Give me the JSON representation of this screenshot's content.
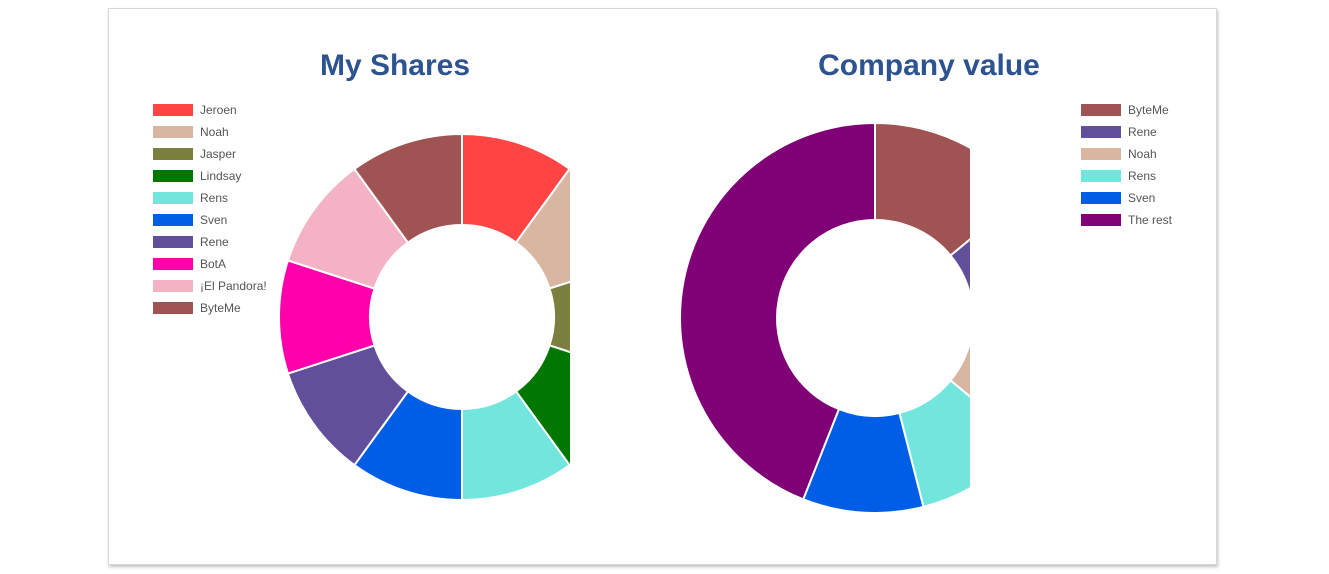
{
  "chart_data": [
    {
      "type": "pie",
      "variant": "donut",
      "title": "My Shares",
      "legend_position": "top-left",
      "categories": [
        "Jeroen",
        "Noah",
        "Jasper",
        "Lindsay",
        "Rens",
        "Sven",
        "Rene",
        "BotA",
        "¡El Pandora!",
        "ByteMe"
      ],
      "values": [
        10,
        10,
        10,
        10,
        10,
        10,
        10,
        10,
        10,
        10
      ],
      "colors": [
        "#ff4444",
        "#d8b6a2",
        "#7b7f40",
        "#007700",
        "#72e6dd",
        "#005ee6",
        "#624f9b",
        "#ff00aa",
        "#f3b3c5",
        "#a05353"
      ]
    },
    {
      "type": "pie",
      "variant": "donut",
      "title": "Company value",
      "legend_position": "top-right",
      "categories": [
        "ByteMe",
        "Rene",
        "Noah",
        "Rens",
        "Sven",
        "The rest"
      ],
      "values": [
        14,
        11,
        11,
        10,
        10,
        44
      ],
      "colors": [
        "#a05353",
        "#624f9b",
        "#d8b6a2",
        "#72e6dd",
        "#005ee6",
        "#800075"
      ]
    }
  ]
}
